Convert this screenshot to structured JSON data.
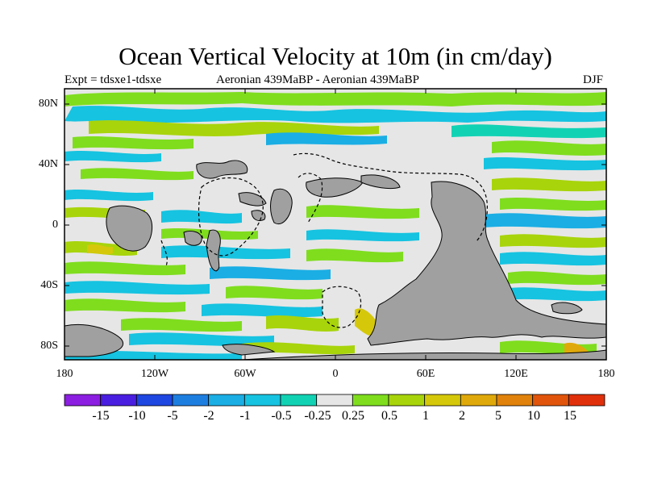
{
  "header": {
    "title": "Ocean Vertical Velocity at 10m (in cm/day)",
    "left": "Expt = tdsxe1-tdsxe",
    "center": "Aeronian 439MaBP - Aeronian 439MaBP",
    "right": "DJF"
  },
  "map": {
    "lat_labels": [
      "80N",
      "40N",
      "0",
      "40S",
      "80S"
    ],
    "lon_labels": [
      "180",
      "120W",
      "60W",
      "0",
      "60E",
      "120E",
      "180"
    ],
    "colors": {
      "land": "#a0a0a0",
      "neutral": "#e6e6e6",
      "light_green": "#7fdd1e",
      "yellow_green": "#a8d40b",
      "cyan": "#16c3e0",
      "teal": "#12d2b4",
      "sky_blue": "#1aaee4",
      "yellow": "#d5c80a",
      "orange": "#e0a90b"
    }
  },
  "colorbar": {
    "labels": [
      "-15",
      "-10",
      "-5",
      "-2",
      "-1",
      "-0.5",
      "-0.25",
      "0.25",
      "0.5",
      "1",
      "2",
      "5",
      "10",
      "15"
    ],
    "colors": [
      "#8b1ee0",
      "#4a1ee0",
      "#1e46e0",
      "#1e7ee0",
      "#1aaee4",
      "#16c3e0",
      "#12d2b4",
      "#e6e6e6",
      "#7fdd1e",
      "#a8d40b",
      "#d5c80a",
      "#e0a90b",
      "#e0820b",
      "#e0550b",
      "#e0300b"
    ]
  }
}
